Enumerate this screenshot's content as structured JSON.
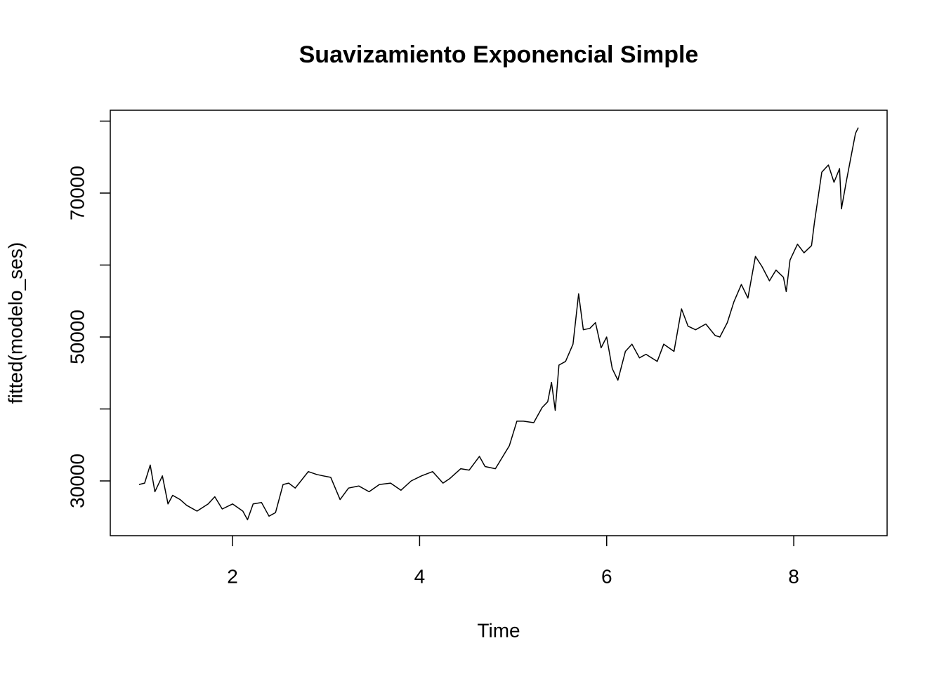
{
  "chart_data": {
    "type": "line",
    "title": "Suavizamiento Exponencial Simple",
    "x_label": "Time",
    "y_label": "fitted(modelo_ses)",
    "color": "#000000",
    "x": [
      1.0,
      1.06,
      1.12,
      1.17,
      1.25,
      1.31,
      1.36,
      1.44,
      1.51,
      1.62,
      1.74,
      1.81,
      1.89,
      2.0,
      2.11,
      2.16,
      2.22,
      2.31,
      2.39,
      2.46,
      2.54,
      2.6,
      2.67,
      2.75,
      2.81,
      2.9,
      2.97,
      3.05,
      3.15,
      3.24,
      3.35,
      3.46,
      3.57,
      3.69,
      3.8,
      3.91,
      4.02,
      4.14,
      4.25,
      4.32,
      4.44,
      4.53,
      4.64,
      4.7,
      4.81,
      4.89,
      4.96,
      5.04,
      5.11,
      5.22,
      5.31,
      5.37,
      5.41,
      5.45,
      5.49,
      5.56,
      5.64,
      5.7,
      5.75,
      5.82,
      5.88,
      5.94,
      6.0,
      6.06,
      6.12,
      6.2,
      6.27,
      6.35,
      6.42,
      6.54,
      6.61,
      6.72,
      6.8,
      6.87,
      6.95,
      7.06,
      7.16,
      7.21,
      7.29,
      7.36,
      7.44,
      7.51,
      7.59,
      7.66,
      7.74,
      7.81,
      7.89,
      7.92,
      7.96,
      8.04,
      8.11,
      8.19,
      8.22,
      8.3,
      8.37,
      8.43,
      8.49,
      8.51,
      8.56,
      8.61,
      8.66,
      8.69
    ],
    "values": [
      29500,
      29700,
      32200,
      28500,
      30700,
      26800,
      28000,
      27400,
      26600,
      25800,
      26800,
      27800,
      26100,
      26800,
      25800,
      24600,
      26800,
      27000,
      25100,
      25600,
      29500,
      29700,
      29000,
      30300,
      31300,
      30900,
      30700,
      30500,
      27400,
      29000,
      29300,
      28500,
      29500,
      29700,
      28700,
      30000,
      30700,
      31300,
      29700,
      30300,
      31700,
      31500,
      33400,
      32000,
      31700,
      33400,
      34900,
      38300,
      38300,
      38100,
      40200,
      41000,
      43700,
      39800,
      46100,
      46600,
      49000,
      56000,
      51000,
      51200,
      52000,
      48500,
      50000,
      45600,
      44000,
      48000,
      49000,
      47100,
      47600,
      46600,
      49000,
      48000,
      53900,
      51500,
      51000,
      51800,
      50200,
      50000,
      52000,
      54900,
      57300,
      55400,
      61200,
      59800,
      57800,
      59300,
      58300,
      56300,
      60700,
      62900,
      61700,
      62700,
      65800,
      72900,
      73900,
      71500,
      73400,
      67800,
      71500,
      74900,
      78300,
      79100
    ],
    "xlim": [
      0.693,
      8.998
    ],
    "ylim": [
      22390,
      81512
    ],
    "xticks": [
      2,
      4,
      6,
      8
    ],
    "yticks": [
      30000,
      {
        "value": 40000,
        "label": null
      },
      50000,
      {
        "value": 60000,
        "label": null
      },
      70000,
      {
        "value": 80000,
        "label": null
      }
    ]
  }
}
